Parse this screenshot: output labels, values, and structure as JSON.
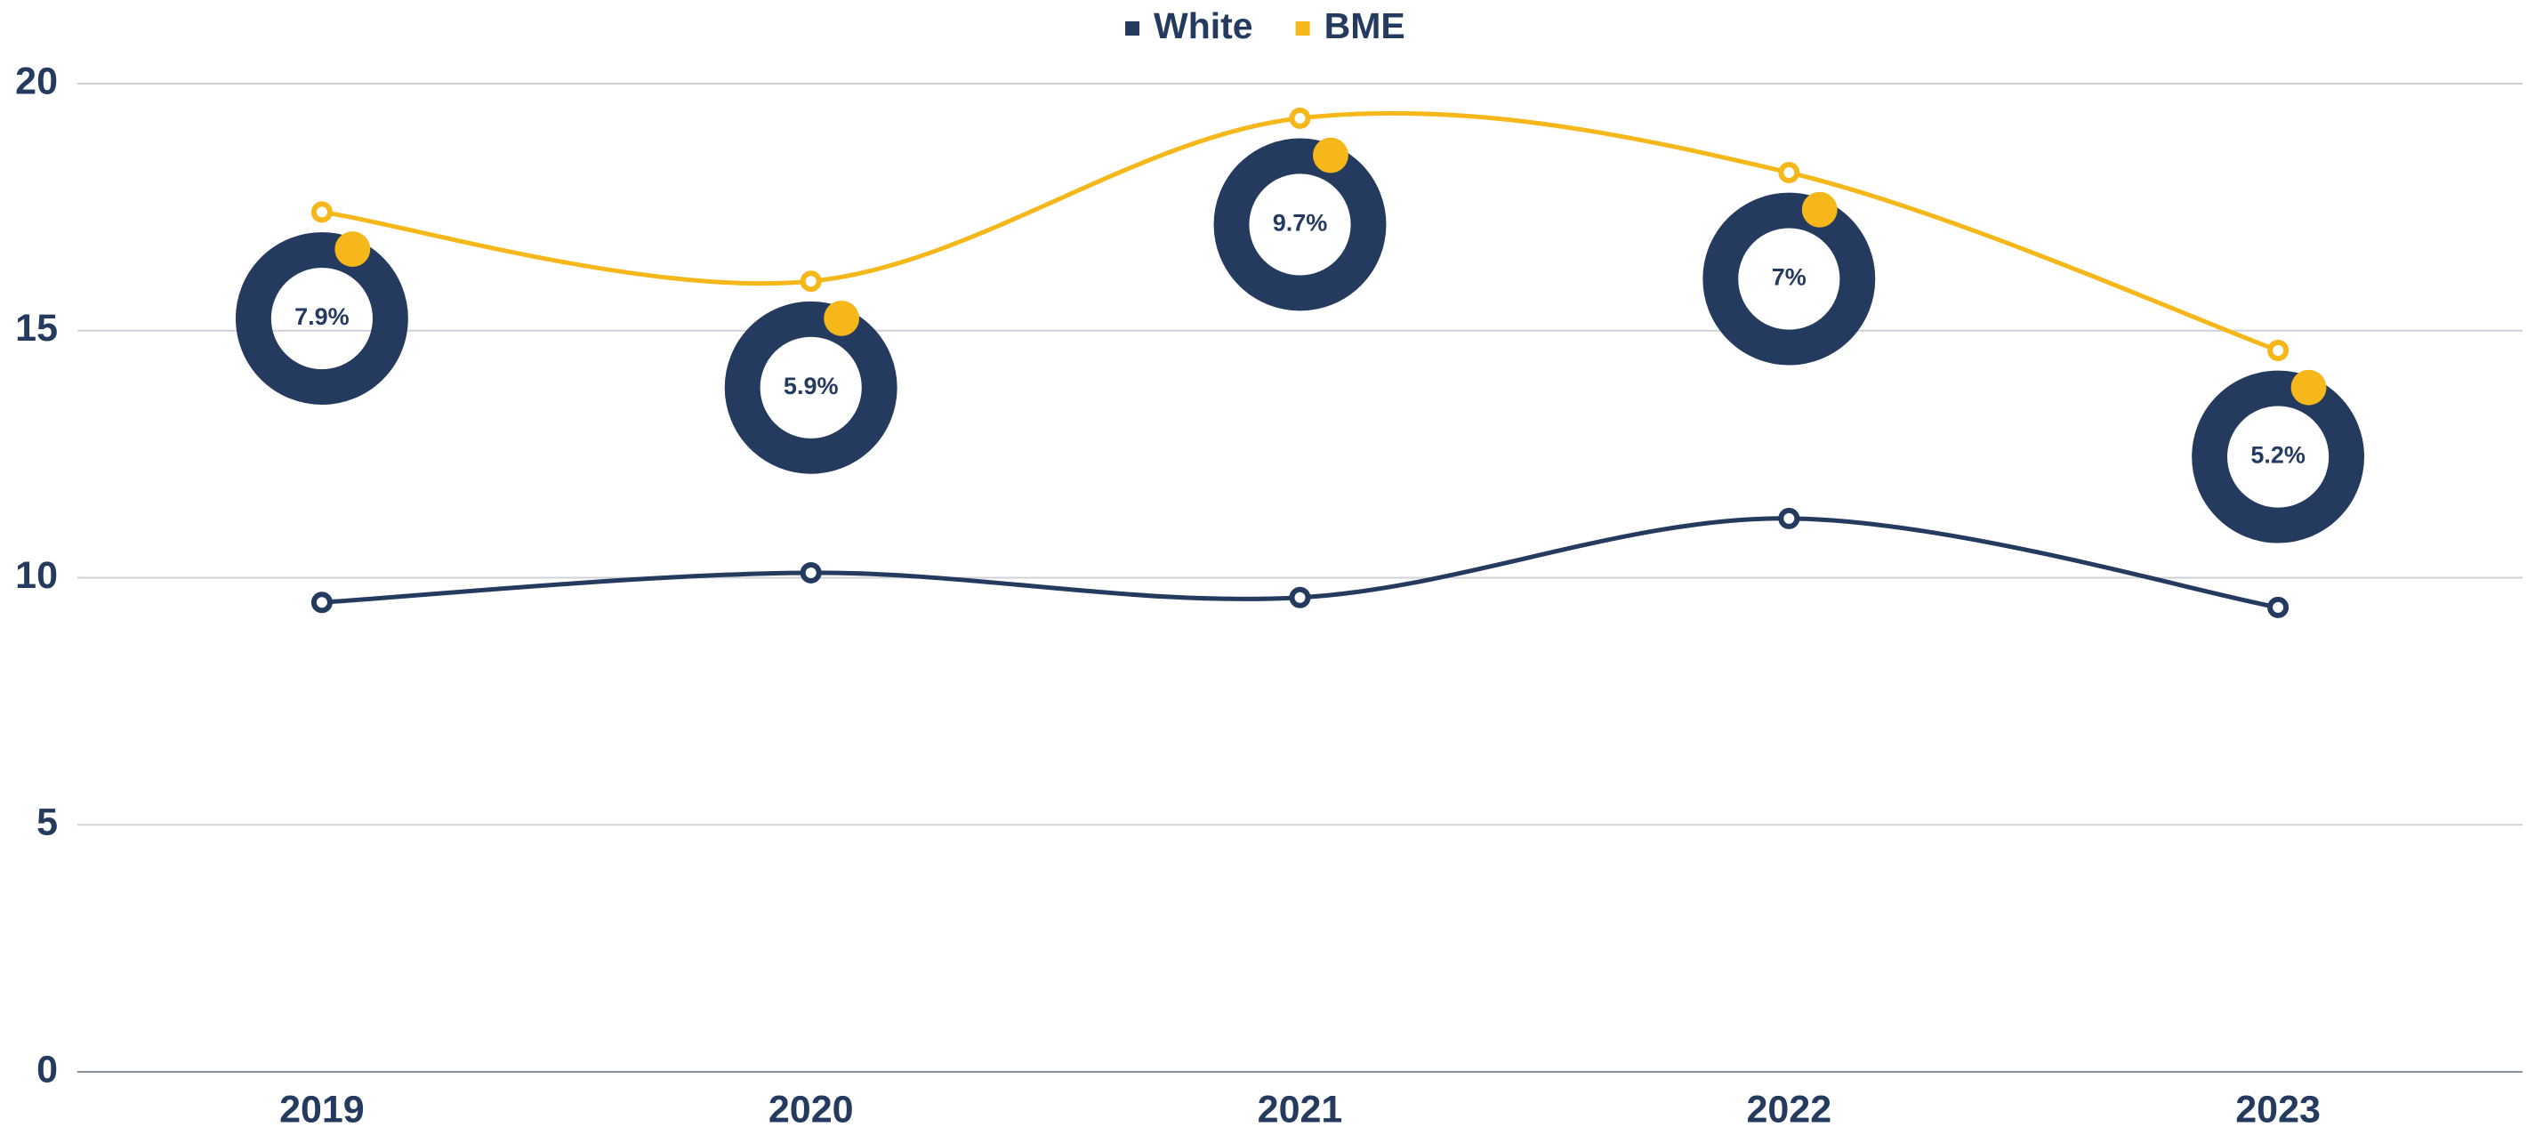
{
  "chart_data": {
    "type": "line",
    "categories": [
      "2019",
      "2020",
      "2021",
      "2022",
      "2023"
    ],
    "series": [
      {
        "name": "White",
        "color": "#243a5e",
        "values": [
          9.5,
          10.1,
          9.6,
          11.2,
          9.4
        ]
      },
      {
        "name": "BME",
        "color": "#f5b719",
        "values": [
          17.4,
          16.0,
          19.3,
          18.2,
          14.6
        ]
      }
    ],
    "annotations": [
      "7.9%",
      "5.9%",
      "9.7%",
      "7%",
      "5.2%"
    ],
    "ylim": [
      0,
      20
    ],
    "yticks": [
      0,
      5,
      10,
      15,
      20
    ],
    "grid": true,
    "legend": "top",
    "smooth": true
  }
}
